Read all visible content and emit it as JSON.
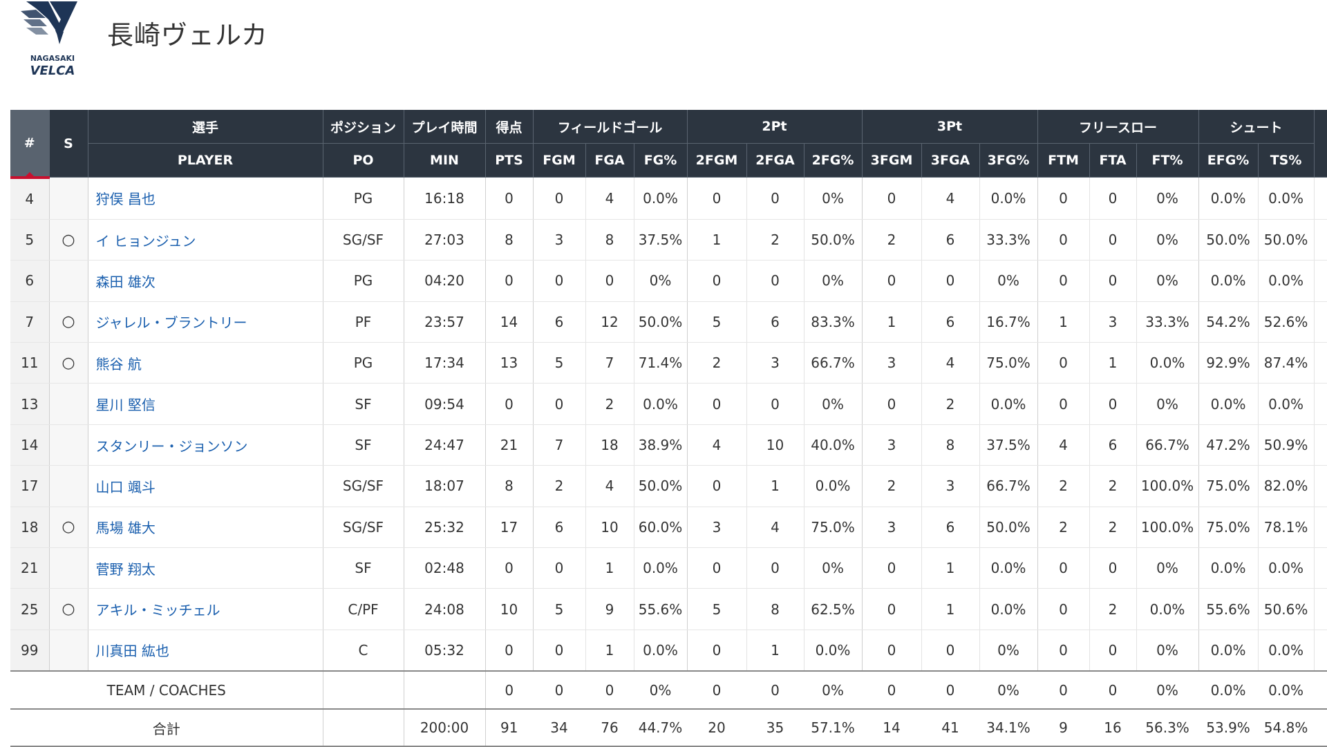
{
  "team": {
    "name": "長崎ヴェルカ",
    "logo_text_top": "NAGASAKI",
    "logo_text_bottom": "VELCA"
  },
  "colors": {
    "header_bg": "#2c3540",
    "number_header_bg": "#59636f",
    "accent_red": "#c8102e",
    "player_link": "#1a5fae"
  },
  "table": {
    "group_headers": {
      "num": "#",
      "starter": "S",
      "player": "選手",
      "position": "ポジション",
      "minutes": "プレイ時間",
      "points": "得点",
      "field_goal": "フィールドゴール",
      "two_pt": "2Pt",
      "three_pt": "3Pt",
      "free_throw": "フリースロー",
      "shoot": "シュート"
    },
    "columns": [
      "PLAYER",
      "PO",
      "MIN",
      "PTS",
      "FGM",
      "FGA",
      "FG%",
      "2FGM",
      "2FGA",
      "2FG%",
      "3FGM",
      "3FGA",
      "3FG%",
      "FTM",
      "FTA",
      "FT%",
      "EFG%",
      "TS%"
    ],
    "rows": [
      {
        "num": "4",
        "s": "",
        "player": "狩俣 昌也",
        "po": "PG",
        "min": "16:18",
        "pts": "0",
        "fgm": "0",
        "fga": "4",
        "fgp": "0.0%",
        "fgm2": "0",
        "fga2": "0",
        "fgp2": "0%",
        "fgm3": "0",
        "fga3": "4",
        "fgp3": "0.0%",
        "ftm": "0",
        "fta": "0",
        "ftp": "0%",
        "efg": "0.0%",
        "ts": "0.0%"
      },
      {
        "num": "5",
        "s": "○",
        "player": "イ ヒョンジュン",
        "po": "SG/SF",
        "min": "27:03",
        "pts": "8",
        "fgm": "3",
        "fga": "8",
        "fgp": "37.5%",
        "fgm2": "1",
        "fga2": "2",
        "fgp2": "50.0%",
        "fgm3": "2",
        "fga3": "6",
        "fgp3": "33.3%",
        "ftm": "0",
        "fta": "0",
        "ftp": "0%",
        "efg": "50.0%",
        "ts": "50.0%"
      },
      {
        "num": "6",
        "s": "",
        "player": "森田 雄次",
        "po": "PG",
        "min": "04:20",
        "pts": "0",
        "fgm": "0",
        "fga": "0",
        "fgp": "0%",
        "fgm2": "0",
        "fga2": "0",
        "fgp2": "0%",
        "fgm3": "0",
        "fga3": "0",
        "fgp3": "0%",
        "ftm": "0",
        "fta": "0",
        "ftp": "0%",
        "efg": "0.0%",
        "ts": "0.0%"
      },
      {
        "num": "7",
        "s": "○",
        "player": "ジャレル・ブラントリー",
        "po": "PF",
        "min": "23:57",
        "pts": "14",
        "fgm": "6",
        "fga": "12",
        "fgp": "50.0%",
        "fgm2": "5",
        "fga2": "6",
        "fgp2": "83.3%",
        "fgm3": "1",
        "fga3": "6",
        "fgp3": "16.7%",
        "ftm": "1",
        "fta": "3",
        "ftp": "33.3%",
        "efg": "54.2%",
        "ts": "52.6%"
      },
      {
        "num": "11",
        "s": "○",
        "player": "熊谷 航",
        "po": "PG",
        "min": "17:34",
        "pts": "13",
        "fgm": "5",
        "fga": "7",
        "fgp": "71.4%",
        "fgm2": "2",
        "fga2": "3",
        "fgp2": "66.7%",
        "fgm3": "3",
        "fga3": "4",
        "fgp3": "75.0%",
        "ftm": "0",
        "fta": "1",
        "ftp": "0.0%",
        "efg": "92.9%",
        "ts": "87.4%"
      },
      {
        "num": "13",
        "s": "",
        "player": "星川 堅信",
        "po": "SF",
        "min": "09:54",
        "pts": "0",
        "fgm": "0",
        "fga": "2",
        "fgp": "0.0%",
        "fgm2": "0",
        "fga2": "0",
        "fgp2": "0%",
        "fgm3": "0",
        "fga3": "2",
        "fgp3": "0.0%",
        "ftm": "0",
        "fta": "0",
        "ftp": "0%",
        "efg": "0.0%",
        "ts": "0.0%"
      },
      {
        "num": "14",
        "s": "",
        "player": "スタンリー・ジョンソン",
        "po": "SF",
        "min": "24:47",
        "pts": "21",
        "fgm": "7",
        "fga": "18",
        "fgp": "38.9%",
        "fgm2": "4",
        "fga2": "10",
        "fgp2": "40.0%",
        "fgm3": "3",
        "fga3": "8",
        "fgp3": "37.5%",
        "ftm": "4",
        "fta": "6",
        "ftp": "66.7%",
        "efg": "47.2%",
        "ts": "50.9%"
      },
      {
        "num": "17",
        "s": "",
        "player": "山口 颯斗",
        "po": "SG/SF",
        "min": "18:07",
        "pts": "8",
        "fgm": "2",
        "fga": "4",
        "fgp": "50.0%",
        "fgm2": "0",
        "fga2": "1",
        "fgp2": "0.0%",
        "fgm3": "2",
        "fga3": "3",
        "fgp3": "66.7%",
        "ftm": "2",
        "fta": "2",
        "ftp": "100.0%",
        "efg": "75.0%",
        "ts": "82.0%"
      },
      {
        "num": "18",
        "s": "○",
        "player": "馬場 雄大",
        "po": "SG/SF",
        "min": "25:32",
        "pts": "17",
        "fgm": "6",
        "fga": "10",
        "fgp": "60.0%",
        "fgm2": "3",
        "fga2": "4",
        "fgp2": "75.0%",
        "fgm3": "3",
        "fga3": "6",
        "fgp3": "50.0%",
        "ftm": "2",
        "fta": "2",
        "ftp": "100.0%",
        "efg": "75.0%",
        "ts": "78.1%"
      },
      {
        "num": "21",
        "s": "",
        "player": "菅野 翔太",
        "po": "SF",
        "min": "02:48",
        "pts": "0",
        "fgm": "0",
        "fga": "1",
        "fgp": "0.0%",
        "fgm2": "0",
        "fga2": "0",
        "fgp2": "0%",
        "fgm3": "0",
        "fga3": "1",
        "fgp3": "0.0%",
        "ftm": "0",
        "fta": "0",
        "ftp": "0%",
        "efg": "0.0%",
        "ts": "0.0%"
      },
      {
        "num": "25",
        "s": "○",
        "player": "アキル・ミッチェル",
        "po": "C/PF",
        "min": "24:08",
        "pts": "10",
        "fgm": "5",
        "fga": "9",
        "fgp": "55.6%",
        "fgm2": "5",
        "fga2": "8",
        "fgp2": "62.5%",
        "fgm3": "0",
        "fga3": "1",
        "fgp3": "0.0%",
        "ftm": "0",
        "fta": "2",
        "ftp": "0.0%",
        "efg": "55.6%",
        "ts": "50.6%"
      },
      {
        "num": "99",
        "s": "",
        "player": "川真田 紘也",
        "po": "C",
        "min": "05:32",
        "pts": "0",
        "fgm": "0",
        "fga": "1",
        "fgp": "0.0%",
        "fgm2": "0",
        "fga2": "1",
        "fgp2": "0.0%",
        "fgm3": "0",
        "fga3": "0",
        "fgp3": "0%",
        "ftm": "0",
        "fta": "0",
        "ftp": "0%",
        "efg": "0.0%",
        "ts": "0.0%"
      }
    ],
    "team_row": {
      "label": "TEAM / COACHES",
      "po": "",
      "min": "",
      "pts": "0",
      "fgm": "0",
      "fga": "0",
      "fgp": "0%",
      "fgm2": "0",
      "fga2": "0",
      "fgp2": "0%",
      "fgm3": "0",
      "fga3": "0",
      "fgp3": "0%",
      "ftm": "0",
      "fta": "0",
      "ftp": "0%",
      "efg": "0.0%",
      "ts": "0.0%"
    },
    "total_row": {
      "label": "合計",
      "po": "",
      "min": "200:00",
      "pts": "91",
      "fgm": "34",
      "fga": "76",
      "fgp": "44.7%",
      "fgm2": "20",
      "fga2": "35",
      "fgp2": "57.1%",
      "fgm3": "14",
      "fga3": "41",
      "fgp3": "34.1%",
      "ftm": "9",
      "fta": "16",
      "ftp": "56.3%",
      "efg": "53.9%",
      "ts": "54.8%"
    }
  }
}
